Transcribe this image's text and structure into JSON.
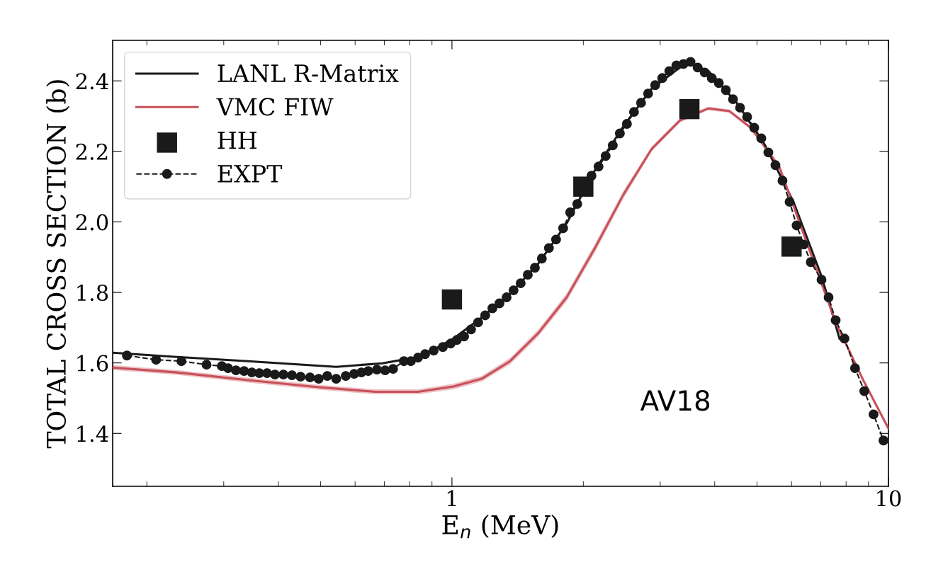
{
  "chart_data": {
    "type": "line",
    "xlabel": "E$_{n}$ (MeV)",
    "ylabel": "TOTAL CROSS SECTION (b)",
    "log": "x",
    "xlim": [
      0.167,
      10
    ],
    "xticks": [
      {
        "value": 0.2,
        "label": null
      },
      {
        "value": 0.3,
        "label": null
      },
      {
        "value": 0.4,
        "label": null
      },
      {
        "value": 0.5,
        "label": null
      },
      {
        "value": 0.6,
        "label": null
      },
      {
        "value": 0.7,
        "label": null
      },
      {
        "value": 0.8,
        "label": null
      },
      {
        "value": 0.9,
        "label": null
      },
      1,
      {
        "value": 2,
        "label": null
      },
      {
        "value": 3,
        "label": null
      },
      {
        "value": 4,
        "label": null
      },
      {
        "value": 5,
        "label": null
      },
      {
        "value": 6,
        "label": null
      },
      {
        "value": 7,
        "label": null
      },
      {
        "value": 8,
        "label": null
      },
      {
        "value": 9,
        "label": null
      },
      10
    ],
    "ylim": [
      1.25,
      2.515
    ],
    "yticks": [
      1.4,
      1.6,
      1.8,
      {
        "value": 2,
        "label": "2.0"
      },
      2.2,
      2.4
    ],
    "grid": false,
    "legend": "top left",
    "annotations": [
      "AV18"
    ],
    "series": [
      {
        "name": "LANL R-Matrix",
        "color": "#1a1a1a",
        "line_style": "solid",
        "marker": "none",
        "x": [
          0.167,
          0.234,
          0.341,
          0.543,
          0.693,
          0.82,
          0.918,
          1.008,
          1.17,
          1.359,
          1.578,
          1.832,
          2.127,
          2.47,
          2.868,
          3.33,
          3.521,
          3.869,
          4.492,
          5.219,
          6.06,
          7.027,
          7.727
        ],
        "values": [
          1.629,
          1.617,
          1.605,
          1.589,
          1.599,
          1.615,
          1.641,
          1.669,
          1.729,
          1.796,
          1.882,
          1.996,
          2.147,
          2.271,
          2.378,
          2.438,
          2.448,
          2.428,
          2.338,
          2.217,
          2.057,
          1.846,
          1.669
        ]
      },
      {
        "name": "VMC FIW",
        "color": "#c8505a",
        "line_style": "solid",
        "marker": "none",
        "x": [
          0.167,
          0.234,
          0.341,
          0.495,
          0.668,
          0.836,
          1.008,
          1.17,
          1.359,
          1.578,
          1.832,
          2.127,
          2.47,
          2.868,
          3.33,
          3.869,
          4.325,
          4.839,
          5.623,
          6.523,
          7.571,
          8.807,
          10
        ],
        "values": [
          1.587,
          1.573,
          1.551,
          1.531,
          1.518,
          1.518,
          1.533,
          1.555,
          1.605,
          1.685,
          1.786,
          1.926,
          2.077,
          2.207,
          2.288,
          2.322,
          2.314,
          2.267,
          2.157,
          1.936,
          1.715,
          1.545,
          1.414
        ],
        "lower": [
          1.58,
          1.566,
          1.544,
          1.524,
          1.511,
          1.511,
          1.525,
          1.547,
          1.596,
          1.675,
          1.775,
          1.914,
          2.066,
          2.2,
          2.282,
          2.317,
          2.309,
          2.262,
          2.152,
          1.931,
          1.71,
          1.54,
          1.409
        ],
        "upper": [
          1.594,
          1.58,
          1.558,
          1.538,
          1.525,
          1.525,
          1.541,
          1.563,
          1.614,
          1.695,
          1.797,
          1.938,
          2.088,
          2.214,
          2.294,
          2.327,
          2.319,
          2.272,
          2.162,
          1.941,
          1.72,
          1.55,
          1.419
        ]
      },
      {
        "name": "HH",
        "type": "scatter",
        "color": "#1a1a1a",
        "marker": "square",
        "x": [
          1,
          2,
          3.5,
          6
        ],
        "values": [
          1.78,
          2.1,
          2.32,
          1.93
        ]
      },
      {
        "name": "EXPT",
        "color": "#1a1a1a",
        "line_style": "dashed",
        "marker": "circle",
        "x": [
          0.18,
          0.21,
          0.24,
          0.274,
          0.297,
          0.307,
          0.32,
          0.334,
          0.348,
          0.362,
          0.377,
          0.393,
          0.411,
          0.43,
          0.45,
          0.473,
          0.495,
          0.518,
          0.543,
          0.571,
          0.597,
          0.62,
          0.643,
          0.673,
          0.703,
          0.733,
          0.776,
          0.805,
          0.836,
          0.868,
          0.908,
          0.953,
          0.993,
          1.026,
          1.066,
          1.106,
          1.148,
          1.192,
          1.238,
          1.285,
          1.334,
          1.384,
          1.437,
          1.492,
          1.549,
          1.607,
          1.668,
          1.732,
          1.798,
          1.866,
          1.937,
          2.012,
          2.088,
          2.167,
          2.25,
          2.336,
          2.425,
          2.517,
          2.613,
          2.712,
          2.815,
          2.922,
          3.033,
          3.148,
          3.268,
          3.392,
          3.521,
          3.655,
          3.794,
          3.938,
          4.088,
          4.243,
          4.405,
          4.572,
          4.746,
          4.926,
          5.114,
          5.308,
          5.51,
          5.719,
          5.937,
          6.162,
          6.397,
          6.64,
          7.027,
          7.294,
          7.571,
          7.931,
          8.387,
          8.807,
          9.247,
          9.744
        ],
        "values": [
          1.621,
          1.609,
          1.605,
          1.595,
          1.591,
          1.585,
          1.579,
          1.577,
          1.573,
          1.571,
          1.571,
          1.567,
          1.567,
          1.565,
          1.561,
          1.559,
          1.555,
          1.563,
          1.555,
          1.563,
          1.569,
          1.573,
          1.577,
          1.581,
          1.579,
          1.583,
          1.605,
          1.605,
          1.615,
          1.625,
          1.635,
          1.645,
          1.655,
          1.665,
          1.675,
          1.695,
          1.715,
          1.735,
          1.755,
          1.769,
          1.786,
          1.806,
          1.826,
          1.85,
          1.87,
          1.896,
          1.926,
          1.95,
          1.982,
          2.027,
          2.051,
          2.103,
          2.131,
          2.157,
          2.187,
          2.217,
          2.251,
          2.278,
          2.312,
          2.338,
          2.364,
          2.388,
          2.408,
          2.428,
          2.444,
          2.448,
          2.454,
          2.438,
          2.424,
          2.408,
          2.394,
          2.374,
          2.348,
          2.324,
          2.298,
          2.267,
          2.237,
          2.197,
          2.161,
          2.117,
          2.057,
          1.99,
          1.936,
          1.886,
          1.836,
          1.786,
          1.721,
          1.669,
          1.585,
          1.52,
          1.454,
          1.38
        ]
      }
    ]
  }
}
